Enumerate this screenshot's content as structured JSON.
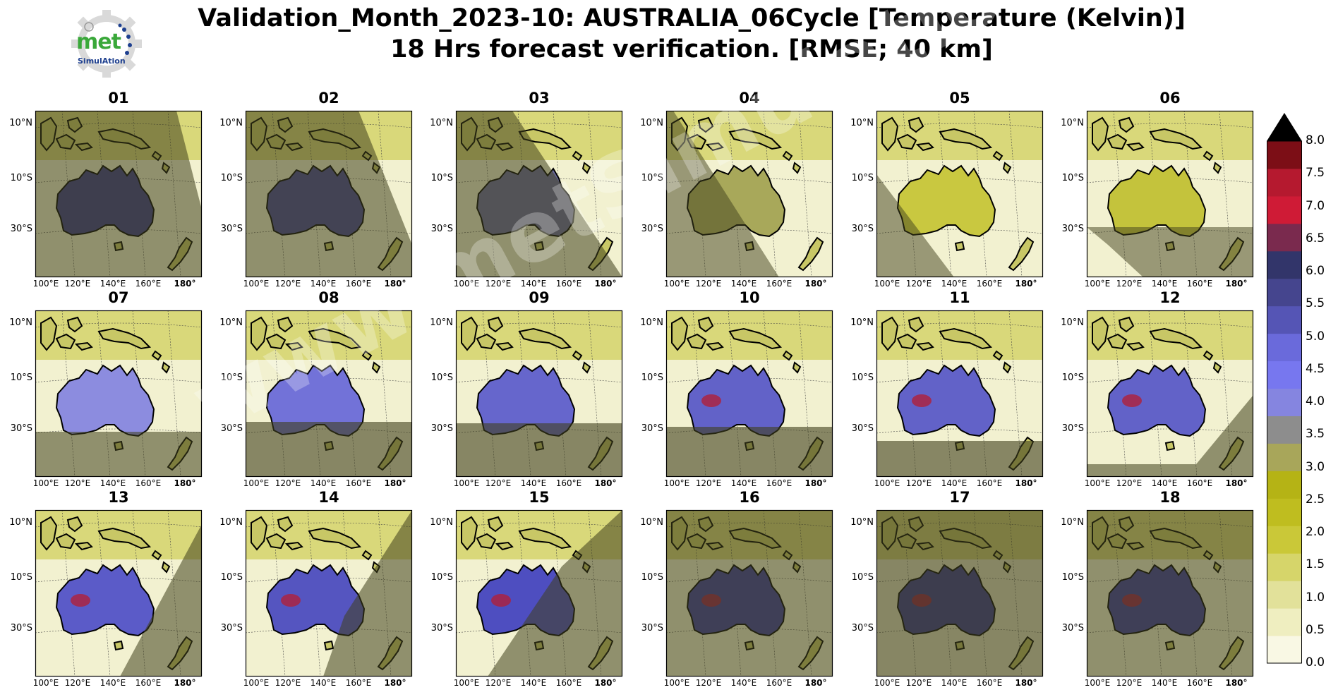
{
  "header": {
    "title_line1": "Validation_Month_2023-10: AUSTRALIA_06Cycle [Temperature (Kelvin)]",
    "title_line2": "18 Hrs forecast verification.  [RMSE; 40 km]"
  },
  "logo": {
    "text": "met",
    "subtext": "SimulAtion"
  },
  "watermark": "www.metSimulation.com",
  "axes": {
    "y_labels": [
      "10°N",
      "10°S",
      "30°S"
    ],
    "x_labels": [
      "100°E",
      "120°E",
      "140°E",
      "160°E",
      "180°"
    ]
  },
  "chart_data": {
    "type": "heatmap",
    "variable": "Temperature (Kelvin)",
    "metric": "RMSE",
    "panels": [
      "01",
      "02",
      "03",
      "04",
      "05",
      "06",
      "07",
      "08",
      "09",
      "10",
      "11",
      "12",
      "13",
      "14",
      "15",
      "16",
      "17",
      "18"
    ],
    "colorbar": {
      "ticks": [
        "0.0",
        "0.5",
        "1.0",
        "1.5",
        "2.0",
        "2.5",
        "3.0",
        "3.5",
        "4.0",
        "4.5",
        "5.0",
        "5.5",
        "6.0",
        "6.5",
        "7.0",
        "7.5",
        "8.0"
      ],
      "range": [
        0,
        8
      ],
      "extend": "max",
      "colors": [
        "#f9f8e4",
        "#efeec0",
        "#e2e19a",
        "#d6d56a",
        "#cac838",
        "#bfbd1f",
        "#b5b315",
        "#a8a65a",
        "#8d8d8d",
        "#8585e0",
        "#7777ef",
        "#6a6adb",
        "#5555b5",
        "#45458e",
        "#32356a",
        "#7a2a4e",
        "#cf1b36",
        "#b5192f",
        "#7c0e16"
      ],
      "extend_color": "#000000"
    }
  }
}
